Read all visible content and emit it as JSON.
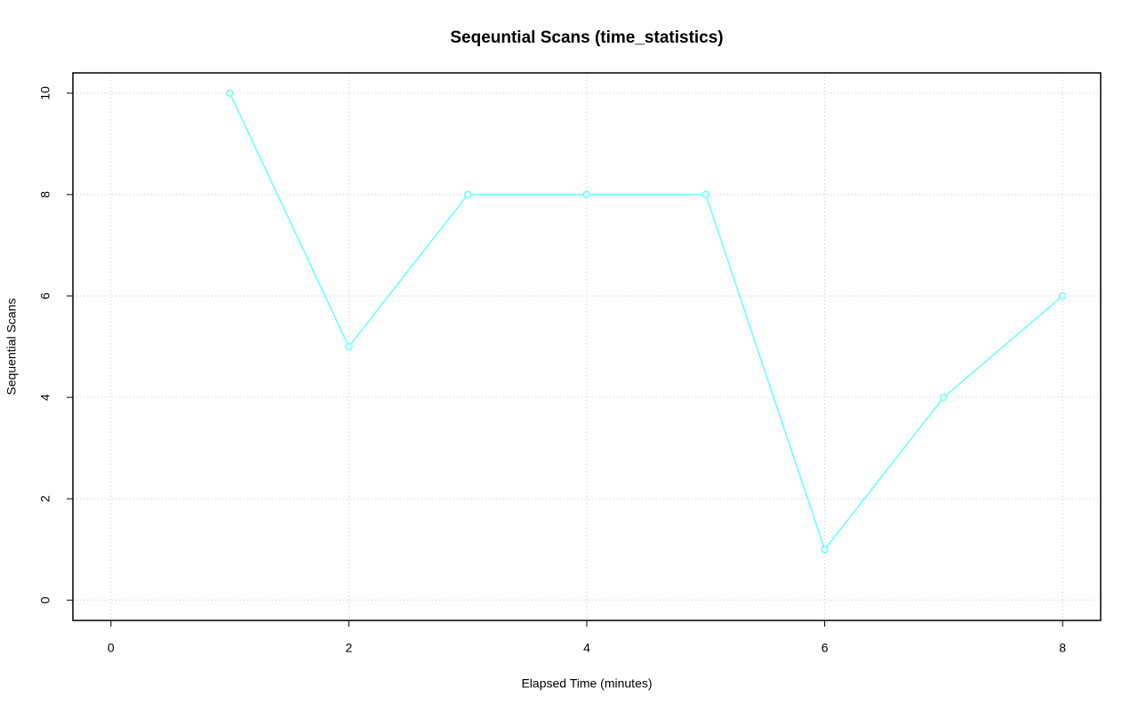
{
  "chart_data": {
    "type": "line",
    "title": "Seqeuntial Scans (time_statistics)",
    "x_label": "Elapsed Time (minutes)",
    "y_label": "Sequential Scans",
    "x": [
      1,
      2,
      3,
      4,
      5,
      6,
      7,
      8
    ],
    "values": [
      10,
      5,
      8,
      8,
      8,
      1,
      4,
      6
    ],
    "color": "#66ffff",
    "markers": true,
    "xlim": [
      -0.32,
      8.32
    ],
    "ylim": [
      -0.4,
      10.4
    ],
    "xticks": [
      0,
      2,
      4,
      6,
      8
    ],
    "yticks": [
      0,
      2,
      4,
      6,
      8,
      10
    ],
    "grid": true
  }
}
